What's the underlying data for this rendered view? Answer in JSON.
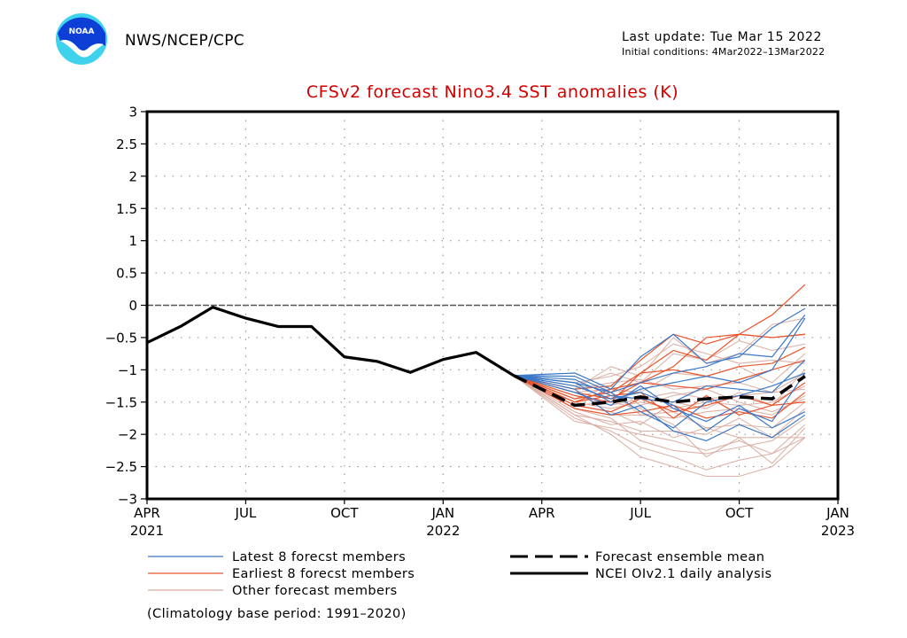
{
  "header": {
    "logo_text": "NOAA",
    "agency": "NWS/NCEP/CPC",
    "last_update": "Last update: Tue Mar 15 2022",
    "initial_conditions": "Initial conditions: 4Mar2022–13Mar2022"
  },
  "colors": {
    "title": "#d40000",
    "latest": "#3b78c8",
    "earliest": "#e8542c",
    "other": "#d9aba0",
    "observed": "#000000",
    "mean": "#000000"
  },
  "chart_data": {
    "type": "line",
    "title": "CFSv2 forecast Nino3.4 SST anomalies (K)",
    "xlabel": "",
    "ylabel": "",
    "ylim": [
      -3,
      3
    ],
    "yticks": [
      3,
      2.5,
      2,
      1.5,
      1,
      0.5,
      0,
      -0.5,
      -1,
      -1.5,
      -2,
      -2.5,
      -3
    ],
    "ytick_labels": [
      "3",
      "2.5",
      "2",
      "1.5",
      "1",
      "0.5",
      "0",
      "−0.5",
      "−1",
      "−1.5",
      "−2",
      "−2.5",
      "−3"
    ],
    "x_unit": "months since Apr 2021",
    "xlim": [
      0,
      21
    ],
    "xticks": [
      {
        "x": 0,
        "month": "APR",
        "year": "2021"
      },
      {
        "x": 3,
        "month": "JUL",
        "year": ""
      },
      {
        "x": 6,
        "month": "OCT",
        "year": ""
      },
      {
        "x": 9,
        "month": "JAN",
        "year": "2022"
      },
      {
        "x": 12,
        "month": "APR",
        "year": ""
      },
      {
        "x": 15,
        "month": "JUL",
        "year": ""
      },
      {
        "x": 18,
        "month": "OCT",
        "year": ""
      },
      {
        "x": 21,
        "month": "JAN",
        "year": "2023"
      }
    ],
    "grid": "dotted",
    "zero_line": "dashed",
    "legend": {
      "placement": "bottom",
      "entries": [
        {
          "key": "latest",
          "label": "Latest 8 forecst members",
          "style": "thin-blue"
        },
        {
          "key": "earliest",
          "label": "Earliest 8 forecst members",
          "style": "thin-red"
        },
        {
          "key": "other",
          "label": "Other forecast members",
          "style": "thin-pink"
        },
        {
          "key": "mean",
          "label": "Forecast ensemble mean",
          "style": "thick-dashed-black"
        },
        {
          "key": "observed",
          "label": "NCEI OIv2.1 daily analysis",
          "style": "thick-solid-black"
        }
      ],
      "note": "(Climatology base period: 1991–2020)"
    },
    "forecast_x": [
      11.15,
      13,
      14.1,
      15,
      16,
      17,
      18,
      19,
      20
    ],
    "series": [
      {
        "name": "NCEI OIv2.1 daily analysis",
        "kind": "observed",
        "x": [
          0,
          1.05,
          2,
          3,
          4,
          5,
          6,
          7,
          8,
          9,
          10,
          11.15
        ],
        "values": [
          -0.58,
          -0.32,
          -0.03,
          -0.2,
          -0.33,
          -0.33,
          -0.8,
          -0.87,
          -1.04,
          -0.84,
          -0.73,
          -1.09
        ]
      },
      {
        "name": "Forecast ensemble mean",
        "kind": "mean",
        "values": [
          -1.09,
          -1.55,
          -1.5,
          -1.42,
          -1.5,
          -1.45,
          -1.42,
          -1.45,
          -1.1
        ]
      },
      {
        "name": "Latest member 1",
        "kind": "latest",
        "values": [
          -1.09,
          -1.05,
          -1.3,
          -0.8,
          -0.45,
          -0.9,
          -0.8,
          -0.35,
          -0.05
        ]
      },
      {
        "name": "Latest member 2",
        "kind": "latest",
        "values": [
          -1.09,
          -1.1,
          -1.35,
          -1.2,
          -1.05,
          -0.95,
          -0.75,
          -0.8,
          -0.15
        ]
      },
      {
        "name": "Latest member 3",
        "kind": "latest",
        "values": [
          -1.09,
          -1.2,
          -1.5,
          -1.3,
          -1.2,
          -1.1,
          -1.2,
          -1.0,
          -0.2
        ]
      },
      {
        "name": "Latest member 4",
        "kind": "latest",
        "values": [
          -1.09,
          -1.15,
          -1.4,
          -1.45,
          -1.5,
          -1.25,
          -1.3,
          -1.35,
          -0.85
        ]
      },
      {
        "name": "Latest member 5",
        "kind": "latest",
        "values": [
          -1.09,
          -1.35,
          -1.55,
          -1.25,
          -1.6,
          -1.8,
          -1.55,
          -1.9,
          -1.65
        ]
      },
      {
        "name": "Latest member 6",
        "kind": "latest",
        "values": [
          -1.09,
          -1.3,
          -1.7,
          -1.55,
          -1.95,
          -2.1,
          -1.85,
          -2.05,
          -1.7
        ]
      },
      {
        "name": "Latest member 7",
        "kind": "latest",
        "values": [
          -1.09,
          -1.25,
          -1.45,
          -1.35,
          -1.55,
          -1.95,
          -1.6,
          -1.8,
          -1.05
        ]
      },
      {
        "name": "Latest member 8",
        "kind": "latest",
        "values": [
          -1.09,
          -1.2,
          -1.35,
          -1.65,
          -1.9,
          -1.5,
          -1.4,
          -1.25,
          -1.05
        ]
      },
      {
        "name": "Earliest member 1",
        "kind": "earliest",
        "values": [
          -1.09,
          -1.35,
          -1.45,
          -1.2,
          -0.95,
          -0.5,
          -0.45,
          -0.15,
          0.32
        ]
      },
      {
        "name": "Earliest member 2",
        "kind": "earliest",
        "values": [
          -1.09,
          -1.3,
          -1.25,
          -0.85,
          -0.45,
          -0.6,
          -0.45,
          -0.5,
          -0.45
        ]
      },
      {
        "name": "Earliest member 3",
        "kind": "earliest",
        "values": [
          -1.09,
          -1.4,
          -1.5,
          -1.05,
          -0.7,
          -0.85,
          -0.45,
          -0.5,
          -0.45
        ]
      },
      {
        "name": "Earliest member 4",
        "kind": "earliest",
        "values": [
          -1.09,
          -1.45,
          -1.35,
          -1.05,
          -1.0,
          -1.1,
          -0.95,
          -0.9,
          -0.65
        ]
      },
      {
        "name": "Earliest member 5",
        "kind": "earliest",
        "values": [
          -1.09,
          -1.5,
          -1.3,
          -1.2,
          -1.25,
          -1.3,
          -1.15,
          -1.0,
          -0.85
        ]
      },
      {
        "name": "Earliest member 6",
        "kind": "earliest",
        "values": [
          -1.09,
          -1.55,
          -1.65,
          -1.45,
          -1.65,
          -1.55,
          -1.4,
          -1.55,
          -1.2
        ]
      },
      {
        "name": "Earliest member 7",
        "kind": "earliest",
        "values": [
          -1.09,
          -1.6,
          -1.7,
          -1.65,
          -1.55,
          -1.75,
          -1.65,
          -1.75,
          -1.35
        ]
      },
      {
        "name": "Earliest member 8",
        "kind": "earliest",
        "values": [
          -1.09,
          -1.5,
          -1.4,
          -1.35,
          -1.75,
          -1.4,
          -1.7,
          -1.55,
          -1.5
        ]
      },
      {
        "name": "Other member 1",
        "kind": "other",
        "values": [
          -1.09,
          -1.3,
          -0.95,
          -1.1,
          -0.5,
          -0.9,
          -0.75,
          -0.3,
          -0.2
        ]
      },
      {
        "name": "Other member 2",
        "kind": "other",
        "values": [
          -1.09,
          -1.25,
          -1.05,
          -1.2,
          -0.75,
          -0.85,
          -0.55,
          -0.7,
          -0.6
        ]
      },
      {
        "name": "Other member 3",
        "kind": "other",
        "values": [
          -1.09,
          -1.35,
          -1.3,
          -1.35,
          -1.05,
          -1.1,
          -0.95,
          -1.2,
          -0.75
        ]
      },
      {
        "name": "Other member 4",
        "kind": "other",
        "values": [
          -1.09,
          -1.4,
          -1.55,
          -1.45,
          -1.35,
          -1.45,
          -1.4,
          -1.35,
          -1.05
        ]
      },
      {
        "name": "Other member 5",
        "kind": "other",
        "values": [
          -1.09,
          -1.5,
          -1.6,
          -1.5,
          -1.6,
          -1.5,
          -1.55,
          -1.5,
          -1.25
        ]
      },
      {
        "name": "Other member 6",
        "kind": "other",
        "values": [
          -1.09,
          -1.6,
          -1.7,
          -1.7,
          -1.75,
          -1.65,
          -1.6,
          -1.7,
          -1.4
        ]
      },
      {
        "name": "Other member 7",
        "kind": "other",
        "values": [
          -1.09,
          -1.65,
          -1.85,
          -1.8,
          -2.05,
          -1.9,
          -1.85,
          -1.9,
          -1.5
        ]
      },
      {
        "name": "Other member 8",
        "kind": "other",
        "values": [
          -1.09,
          -1.7,
          -1.8,
          -1.95,
          -1.95,
          -2.0,
          -1.75,
          -2.05,
          -1.6
        ]
      },
      {
        "name": "Other member 9",
        "kind": "other",
        "values": [
          -1.09,
          -1.6,
          -1.75,
          -2.1,
          -2.25,
          -2.3,
          -2.2,
          -2.1,
          -1.75
        ]
      },
      {
        "name": "Other member 10",
        "kind": "other",
        "values": [
          -1.09,
          -1.75,
          -1.95,
          -2.2,
          -2.35,
          -2.55,
          -2.4,
          -2.3,
          -2.05
        ]
      },
      {
        "name": "Other member 11",
        "kind": "other",
        "values": [
          -1.09,
          -1.7,
          -2.0,
          -2.35,
          -2.5,
          -2.65,
          -2.65,
          -2.5,
          -2.05
        ]
      },
      {
        "name": "Other member 12",
        "kind": "other",
        "values": [
          -1.09,
          -1.8,
          -1.9,
          -2.0,
          -2.1,
          -2.25,
          -2.1,
          -2.3,
          -1.85
        ]
      },
      {
        "name": "Other member 13",
        "kind": "other",
        "values": [
          -1.09,
          -1.55,
          -1.5,
          -1.6,
          -1.85,
          -2.35,
          -2.05,
          -2.45,
          -1.9
        ]
      },
      {
        "name": "Other member 14",
        "kind": "other",
        "values": [
          -1.09,
          -1.45,
          -1.35,
          -1.7,
          -1.65,
          -1.9,
          -2.05,
          -2.05,
          -2.05
        ]
      },
      {
        "name": "Other member 15",
        "kind": "other",
        "values": [
          -1.09,
          -1.3,
          -1.2,
          -1.15,
          -1.3,
          -1.25,
          -1.2,
          -1.35,
          -1.3
        ]
      },
      {
        "name": "Other member 16",
        "kind": "other",
        "values": [
          -1.09,
          -1.2,
          -1.1,
          -0.95,
          -0.6,
          -0.75,
          -0.9,
          -0.85,
          -0.9
        ]
      },
      {
        "name": "Other member 17",
        "kind": "other",
        "values": [
          -1.09,
          -1.45,
          -1.25,
          -1.55,
          -1.4,
          -1.3,
          -1.5,
          -1.65,
          -1.45
        ]
      },
      {
        "name": "Other member 18",
        "kind": "other",
        "values": [
          -1.09,
          -1.55,
          -1.65,
          -1.85,
          -1.5,
          -1.6,
          -1.35,
          -1.55,
          -1.0
        ]
      }
    ]
  }
}
